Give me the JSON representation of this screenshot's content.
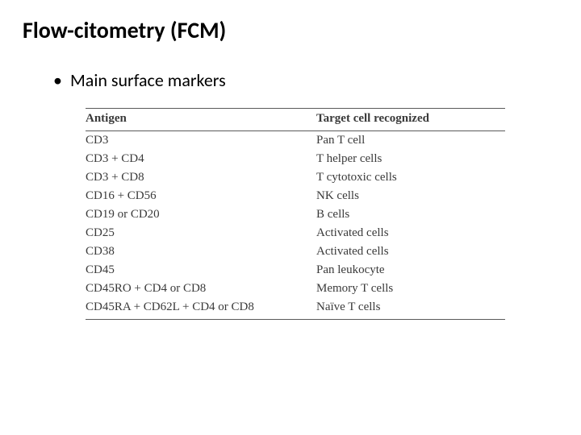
{
  "title": "Flow-citometry (FCM)",
  "bullet": "Main surface markers",
  "table": {
    "headers": {
      "antigen": "Antigen",
      "target": "Target cell recognized"
    },
    "rows": [
      {
        "antigen": "CD3",
        "target": "Pan T cell"
      },
      {
        "antigen": "CD3 + CD4",
        "target": "T helper cells"
      },
      {
        "antigen": "CD3 + CD8",
        "target": "T cytotoxic cells"
      },
      {
        "antigen": "CD16 + CD56",
        "target": "NK cells"
      },
      {
        "antigen": "CD19 or CD20",
        "target": "B cells"
      },
      {
        "antigen": "CD25",
        "target": "Activated cells"
      },
      {
        "antigen": "CD38",
        "target": "Activated cells"
      },
      {
        "antigen": "CD45",
        "target": "Pan leukocyte"
      },
      {
        "antigen": "CD45RO + CD4 or CD8",
        "target": "Memory T cells"
      },
      {
        "antigen": "CD45RA + CD62L + CD4 or CD8",
        "target": "Naïve T cells"
      }
    ]
  },
  "style": {
    "background_color": "#ffffff",
    "title_fontsize": 28,
    "title_weight": 700,
    "bullet_fontsize": 22,
    "table_fontsize": 15,
    "table_font": "Times New Roman",
    "text_color": "#000000",
    "table_text_color": "#3a3a3a",
    "rule_color": "#5a5a5a"
  }
}
